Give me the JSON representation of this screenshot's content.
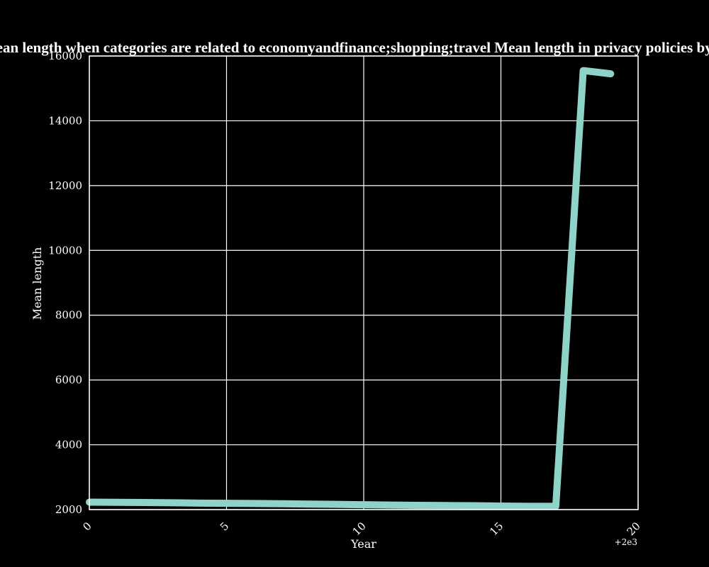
{
  "colors": {
    "background": "#000000",
    "foreground": "#ffffff",
    "line": "#8dd3c7"
  },
  "chart_data": {
    "type": "line",
    "title": "Mean length when categories are related to economyandfinance;shopping;travel Mean length in privacy policies by Year",
    "xlabel": "Year",
    "ylabel": "Mean length",
    "x_offset_label": "+2e3",
    "xlim": [
      0,
      20
    ],
    "ylim": [
      2000,
      16000
    ],
    "xticks": [
      0,
      5,
      10,
      15,
      20
    ],
    "yticks": [
      2000,
      4000,
      6000,
      8000,
      10000,
      12000,
      14000,
      16000
    ],
    "grid": true,
    "series": [
      {
        "x": [
          0,
          1,
          2,
          3,
          4,
          5,
          6,
          7,
          8,
          9,
          10,
          11,
          12,
          13,
          14,
          15,
          16,
          17,
          18,
          19
        ],
        "values": [
          2230,
          2225,
          2220,
          2210,
          2200,
          2195,
          2190,
          2180,
          2170,
          2160,
          2150,
          2140,
          2130,
          2125,
          2120,
          2110,
          2100,
          2100,
          15550,
          15450
        ]
      }
    ]
  }
}
